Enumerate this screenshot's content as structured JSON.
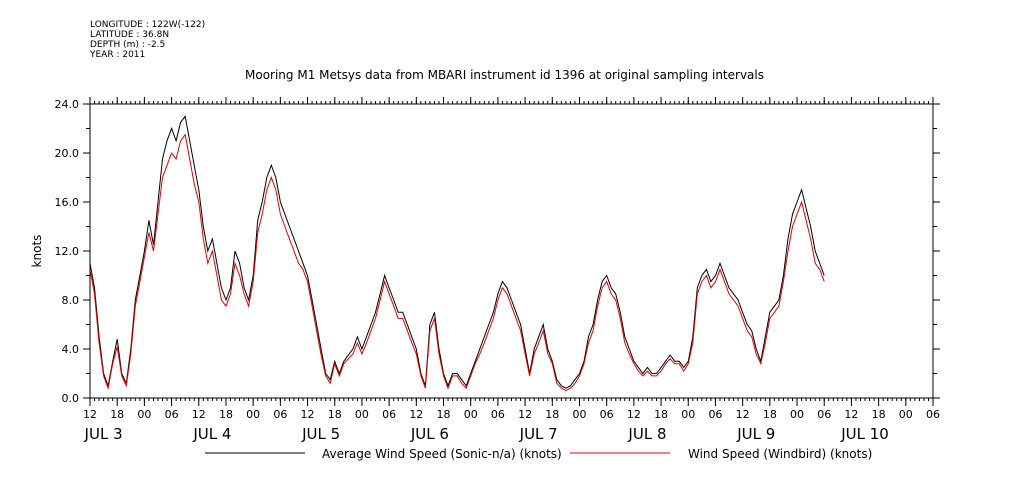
{
  "header": {
    "longitude": "LONGITUDE : 122W(-122)",
    "latitude": "LATITUDE : 36.8N",
    "depth": "DEPTH (m) : -2.5",
    "year": "YEAR : 2011"
  },
  "chart_data": {
    "type": "line",
    "title": "Mooring M1 Metsys data from MBARI instrument id 1396 at original sampling intervals",
    "ylabel": "knots",
    "xlabel": "",
    "ylim": [
      0,
      24
    ],
    "yticks": [
      "0.0",
      "4.0",
      "8.0",
      "12.0",
      "16.0",
      "20.0",
      "24.0"
    ],
    "x_range_hours": [
      0,
      186
    ],
    "hour_ticks": [
      "12",
      "18",
      "00",
      "06",
      "12",
      "18",
      "00",
      "06",
      "12",
      "18",
      "00",
      "06",
      "12",
      "18",
      "00",
      "06",
      "12",
      "18",
      "00",
      "06",
      "12",
      "18",
      "00",
      "06",
      "12",
      "18",
      "00",
      "06",
      "12",
      "18",
      "00",
      "06"
    ],
    "day_labels": [
      "JUL  3",
      "JUL  4",
      "JUL  5",
      "JUL  6",
      "JUL  7",
      "JUL  8",
      "JUL  9",
      "JUL 10"
    ],
    "grid": false,
    "legend_position": "bottom",
    "series": [
      {
        "name": "Average Wind Speed (Sonic-n/a) (knots)",
        "color": "#000000",
        "points": [
          [
            0,
            11
          ],
          [
            1,
            9
          ],
          [
            2,
            5
          ],
          [
            3,
            2
          ],
          [
            4,
            1
          ],
          [
            5,
            3
          ],
          [
            6,
            4.8
          ],
          [
            7,
            2
          ],
          [
            8,
            1.2
          ],
          [
            9,
            4
          ],
          [
            10,
            8
          ],
          [
            11,
            10
          ],
          [
            12,
            12
          ],
          [
            13,
            14.5
          ],
          [
            14,
            12.5
          ],
          [
            15,
            16
          ],
          [
            16,
            19.5
          ],
          [
            17,
            21
          ],
          [
            18,
            22
          ],
          [
            19,
            21
          ],
          [
            20,
            22.5
          ],
          [
            21,
            23
          ],
          [
            22,
            21
          ],
          [
            23,
            19
          ],
          [
            24,
            17
          ],
          [
            25,
            14
          ],
          [
            26,
            12
          ],
          [
            27,
            13
          ],
          [
            28,
            11
          ],
          [
            29,
            9
          ],
          [
            30,
            8
          ],
          [
            31,
            9
          ],
          [
            32,
            12
          ],
          [
            33,
            11
          ],
          [
            34,
            9
          ],
          [
            35,
            8
          ],
          [
            36,
            10
          ],
          [
            37,
            14.5
          ],
          [
            38,
            16
          ],
          [
            39,
            18
          ],
          [
            40,
            19
          ],
          [
            41,
            18
          ],
          [
            42,
            16
          ],
          [
            43,
            15
          ],
          [
            44,
            14
          ],
          [
            45,
            13
          ],
          [
            46,
            12
          ],
          [
            47,
            11
          ],
          [
            48,
            10
          ],
          [
            49,
            8
          ],
          [
            50,
            6
          ],
          [
            51,
            4
          ],
          [
            52,
            2
          ],
          [
            53,
            1.5
          ],
          [
            54,
            3
          ],
          [
            55,
            2
          ],
          [
            56,
            3
          ],
          [
            57,
            3.5
          ],
          [
            58,
            4
          ],
          [
            59,
            5
          ],
          [
            60,
            4
          ],
          [
            61,
            5
          ],
          [
            62,
            6
          ],
          [
            63,
            7
          ],
          [
            64,
            8.5
          ],
          [
            65,
            10
          ],
          [
            66,
            9
          ],
          [
            67,
            8
          ],
          [
            68,
            7
          ],
          [
            69,
            7
          ],
          [
            70,
            6
          ],
          [
            71,
            5
          ],
          [
            72,
            4
          ],
          [
            73,
            2
          ],
          [
            74,
            1
          ],
          [
            75,
            6
          ],
          [
            76,
            7
          ],
          [
            77,
            4
          ],
          [
            78,
            2
          ],
          [
            79,
            1
          ],
          [
            80,
            2
          ],
          [
            81,
            2
          ],
          [
            82,
            1.5
          ],
          [
            83,
            1
          ],
          [
            84,
            2
          ],
          [
            85,
            3
          ],
          [
            86,
            4
          ],
          [
            87,
            5
          ],
          [
            88,
            6
          ],
          [
            89,
            7
          ],
          [
            90,
            8.5
          ],
          [
            91,
            9.5
          ],
          [
            92,
            9
          ],
          [
            93,
            8
          ],
          [
            94,
            7
          ],
          [
            95,
            6
          ],
          [
            96,
            4
          ],
          [
            97,
            2
          ],
          [
            98,
            4
          ],
          [
            99,
            5
          ],
          [
            100,
            6
          ],
          [
            101,
            4
          ],
          [
            102,
            3
          ],
          [
            103,
            1.5
          ],
          [
            104,
            1
          ],
          [
            105,
            0.8
          ],
          [
            106,
            1
          ],
          [
            107,
            1.5
          ],
          [
            108,
            2
          ],
          [
            109,
            3
          ],
          [
            110,
            5
          ],
          [
            111,
            6
          ],
          [
            112,
            8
          ],
          [
            113,
            9.5
          ],
          [
            114,
            10
          ],
          [
            115,
            9
          ],
          [
            116,
            8.5
          ],
          [
            117,
            7
          ],
          [
            118,
            5
          ],
          [
            119,
            4
          ],
          [
            120,
            3
          ],
          [
            121,
            2.5
          ],
          [
            122,
            2
          ],
          [
            123,
            2.5
          ],
          [
            124,
            2
          ],
          [
            125,
            2
          ],
          [
            126,
            2.5
          ],
          [
            127,
            3
          ],
          [
            128,
            3.5
          ],
          [
            129,
            3
          ],
          [
            130,
            3
          ],
          [
            131,
            2.5
          ],
          [
            132,
            3
          ],
          [
            133,
            5
          ],
          [
            134,
            9
          ],
          [
            135,
            10
          ],
          [
            136,
            10.5
          ],
          [
            137,
            9.5
          ],
          [
            138,
            10
          ],
          [
            139,
            11
          ],
          [
            140,
            10
          ],
          [
            141,
            9
          ],
          [
            142,
            8.5
          ],
          [
            143,
            8
          ],
          [
            144,
            7
          ],
          [
            145,
            6
          ],
          [
            146,
            5.5
          ],
          [
            147,
            4
          ],
          [
            148,
            3
          ],
          [
            149,
            5
          ],
          [
            150,
            7
          ],
          [
            151,
            7.5
          ],
          [
            152,
            8
          ],
          [
            153,
            10
          ],
          [
            154,
            13
          ],
          [
            155,
            15
          ],
          [
            156,
            16
          ],
          [
            157,
            17
          ],
          [
            158,
            15.5
          ],
          [
            159,
            14
          ],
          [
            160,
            12
          ],
          [
            161,
            11
          ],
          [
            162,
            10
          ]
        ]
      },
      {
        "name": "Wind Speed (Windbird) (knots)",
        "color": "#e00000",
        "points": [
          [
            0,
            10.5
          ],
          [
            1,
            8.5
          ],
          [
            2,
            4.5
          ],
          [
            3,
            1.8
          ],
          [
            4,
            0.8
          ],
          [
            5,
            2.8
          ],
          [
            6,
            4.2
          ],
          [
            7,
            1.8
          ],
          [
            8,
            1
          ],
          [
            9,
            3.6
          ],
          [
            10,
            7.5
          ],
          [
            11,
            9.5
          ],
          [
            12,
            11.5
          ],
          [
            13,
            13.5
          ],
          [
            14,
            12
          ],
          [
            15,
            15
          ],
          [
            16,
            18
          ],
          [
            17,
            19
          ],
          [
            18,
            20
          ],
          [
            19,
            19.5
          ],
          [
            20,
            21
          ],
          [
            21,
            21.5
          ],
          [
            22,
            19.5
          ],
          [
            23,
            17.5
          ],
          [
            24,
            16
          ],
          [
            25,
            13
          ],
          [
            26,
            11
          ],
          [
            27,
            12
          ],
          [
            28,
            10
          ],
          [
            29,
            8
          ],
          [
            30,
            7.5
          ],
          [
            31,
            8.5
          ],
          [
            32,
            11
          ],
          [
            33,
            10
          ],
          [
            34,
            8.5
          ],
          [
            35,
            7.5
          ],
          [
            36,
            9.5
          ],
          [
            37,
            13.5
          ],
          [
            38,
            15
          ],
          [
            39,
            17
          ],
          [
            40,
            18
          ],
          [
            41,
            17
          ],
          [
            42,
            15
          ],
          [
            43,
            14
          ],
          [
            44,
            13
          ],
          [
            45,
            12
          ],
          [
            46,
            11
          ],
          [
            47,
            10.5
          ],
          [
            48,
            9.5
          ],
          [
            49,
            7.5
          ],
          [
            50,
            5.5
          ],
          [
            51,
            3.5
          ],
          [
            52,
            1.8
          ],
          [
            53,
            1.2
          ],
          [
            54,
            2.8
          ],
          [
            55,
            1.8
          ],
          [
            56,
            2.8
          ],
          [
            57,
            3.2
          ],
          [
            58,
            3.6
          ],
          [
            59,
            4.5
          ],
          [
            60,
            3.6
          ],
          [
            61,
            4.5
          ],
          [
            62,
            5.5
          ],
          [
            63,
            6.5
          ],
          [
            64,
            8
          ],
          [
            65,
            9.5
          ],
          [
            66,
            8.5
          ],
          [
            67,
            7.5
          ],
          [
            68,
            6.5
          ],
          [
            69,
            6.5
          ],
          [
            70,
            5.5
          ],
          [
            71,
            4.5
          ],
          [
            72,
            3.6
          ],
          [
            73,
            1.8
          ],
          [
            74,
            0.8
          ],
          [
            75,
            5.5
          ],
          [
            76,
            6.5
          ],
          [
            77,
            3.6
          ],
          [
            78,
            1.8
          ],
          [
            79,
            0.8
          ],
          [
            80,
            1.8
          ],
          [
            81,
            1.8
          ],
          [
            82,
            1.2
          ],
          [
            83,
            0.8
          ],
          [
            84,
            1.8
          ],
          [
            85,
            2.8
          ],
          [
            86,
            3.6
          ],
          [
            87,
            4.5
          ],
          [
            88,
            5.5
          ],
          [
            89,
            6.5
          ],
          [
            90,
            8
          ],
          [
            91,
            9
          ],
          [
            92,
            8.5
          ],
          [
            93,
            7.5
          ],
          [
            94,
            6.5
          ],
          [
            95,
            5.5
          ],
          [
            96,
            3.6
          ],
          [
            97,
            1.8
          ],
          [
            98,
            3.6
          ],
          [
            99,
            4.5
          ],
          [
            100,
            5.5
          ],
          [
            101,
            3.6
          ],
          [
            102,
            2.8
          ],
          [
            103,
            1.2
          ],
          [
            104,
            0.8
          ],
          [
            105,
            0.6
          ],
          [
            106,
            0.8
          ],
          [
            107,
            1.2
          ],
          [
            108,
            1.8
          ],
          [
            109,
            2.8
          ],
          [
            110,
            4.5
          ],
          [
            111,
            5.5
          ],
          [
            112,
            7.5
          ],
          [
            113,
            9
          ],
          [
            114,
            9.5
          ],
          [
            115,
            8.5
          ],
          [
            116,
            8
          ],
          [
            117,
            6.5
          ],
          [
            118,
            4.5
          ],
          [
            119,
            3.6
          ],
          [
            120,
            2.8
          ],
          [
            121,
            2.2
          ],
          [
            122,
            1.8
          ],
          [
            123,
            2.2
          ],
          [
            124,
            1.8
          ],
          [
            125,
            1.8
          ],
          [
            126,
            2.2
          ],
          [
            127,
            2.8
          ],
          [
            128,
            3.2
          ],
          [
            129,
            2.8
          ],
          [
            130,
            2.8
          ],
          [
            131,
            2.2
          ],
          [
            132,
            2.8
          ],
          [
            133,
            4.5
          ],
          [
            134,
            8.5
          ],
          [
            135,
            9.5
          ],
          [
            136,
            10
          ],
          [
            137,
            9
          ],
          [
            138,
            9.5
          ],
          [
            139,
            10.5
          ],
          [
            140,
            9.5
          ],
          [
            141,
            8.5
          ],
          [
            142,
            8
          ],
          [
            143,
            7.5
          ],
          [
            144,
            6.5
          ],
          [
            145,
            5.5
          ],
          [
            146,
            5
          ],
          [
            147,
            3.6
          ],
          [
            148,
            2.8
          ],
          [
            149,
            4.5
          ],
          [
            150,
            6.5
          ],
          [
            151,
            7
          ],
          [
            152,
            7.5
          ],
          [
            153,
            9.5
          ],
          [
            154,
            12
          ],
          [
            155,
            14
          ],
          [
            156,
            15
          ],
          [
            157,
            16
          ],
          [
            158,
            14.5
          ],
          [
            159,
            13
          ],
          [
            160,
            11
          ],
          [
            161,
            10.5
          ],
          [
            162,
            9.5
          ]
        ]
      }
    ]
  }
}
